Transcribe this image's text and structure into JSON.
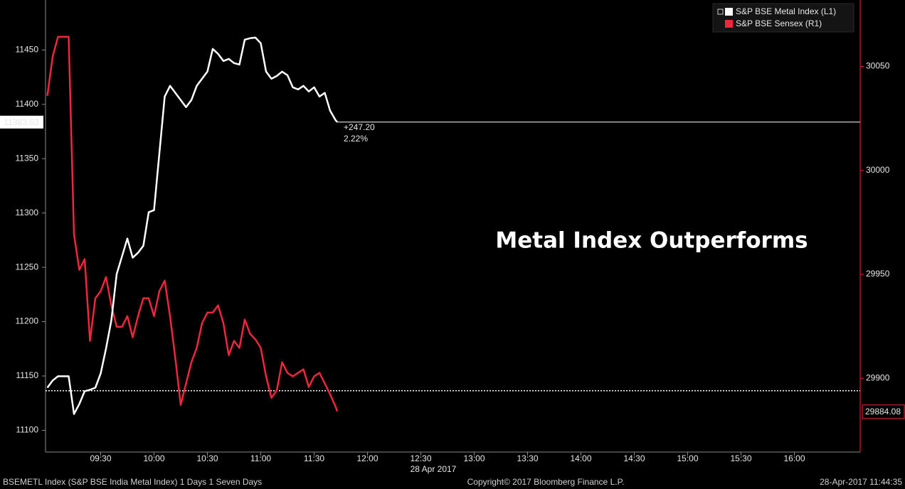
{
  "chart_data": {
    "type": "line",
    "title": "Metal Index Outperforms",
    "x": [
      "09:00",
      "09:03",
      "09:06",
      "09:09",
      "09:12",
      "09:15",
      "09:18",
      "09:21",
      "09:24",
      "09:27",
      "09:30",
      "09:33",
      "09:36",
      "09:39",
      "09:42",
      "09:45",
      "09:48",
      "09:51",
      "09:54",
      "09:57",
      "10:00",
      "10:03",
      "10:06",
      "10:09",
      "10:12",
      "10:15",
      "10:18",
      "10:21",
      "10:24",
      "10:27",
      "10:30",
      "10:33",
      "10:36",
      "10:39",
      "10:42",
      "10:45",
      "10:48",
      "10:51",
      "10:54",
      "10:57",
      "11:00",
      "11:03",
      "11:06",
      "11:09",
      "11:12",
      "11:15",
      "11:18",
      "11:21",
      "11:24",
      "11:27",
      "11:30",
      "11:33",
      "11:36",
      "11:39",
      "11:42",
      "11:43"
    ],
    "series": [
      {
        "name": "S&P BSE Metal Index (L1)",
        "color": "#ffffff",
        "axis": "y",
        "values": [
          11139.2,
          11145.8,
          11149.7,
          11149.7,
          11149.7,
          11115.0,
          11124.2,
          11136.0,
          11137.3,
          11139.2,
          11152.3,
          11175.2,
          11201.3,
          11243.8,
          11260.1,
          11276.5,
          11258.8,
          11263.4,
          11269.9,
          11300.7,
          11302.6,
          11354.9,
          11407.2,
          11417.0,
          11410.5,
          11403.9,
          11397.4,
          11403.9,
          11417.0,
          11423.5,
          11430.1,
          11451.0,
          11446.4,
          11439.9,
          11441.8,
          11437.9,
          11436.6,
          11459.5,
          11460.8,
          11461.4,
          11456.2,
          11430.1,
          11423.5,
          11426.1,
          11430.1,
          11426.8,
          11415.7,
          11413.7,
          11417.0,
          11411.8,
          11415.7,
          11407.2,
          11410.5,
          11394.1,
          11385.6,
          11383.63
        ]
      },
      {
        "name": "S&P BSE Sensex (R1)",
        "color": "#f0263c",
        "axis": "y2",
        "values": [
          30035.9,
          30054.7,
          30064.3,
          30064.3,
          30064.3,
          29969.2,
          29952.2,
          29957.3,
          29918.0,
          29938.5,
          29941.9,
          29948.7,
          29935.1,
          29924.8,
          29924.8,
          29929.9,
          29919.7,
          29929.9,
          29938.5,
          29938.5,
          29929.9,
          29941.9,
          29947.0,
          29929.9,
          29909.4,
          29887.2,
          29897.5,
          29907.7,
          29914.6,
          29926.5,
          29931.6,
          29931.6,
          29935.1,
          29926.5,
          29911.1,
          29918.0,
          29914.6,
          29928.2,
          29921.4,
          29918.7,
          29914.6,
          29900.9,
          29890.6,
          29894.1,
          29907.7,
          29902.6,
          29900.9,
          29902.6,
          29904.3,
          29895.8,
          29900.9,
          29902.6,
          29897.5,
          29892.3,
          29886.5,
          29884.08
        ]
      }
    ],
    "xlim": [
      "08:59",
      "16:37"
    ],
    "xticks": [
      "09:30",
      "10:00",
      "10:30",
      "11:00",
      "11:30",
      "12:00",
      "12:30",
      "13:00",
      "13:30",
      "14:00",
      "14:30",
      "15:00",
      "15:30",
      "16:00"
    ],
    "x_date_label": "28 Apr 2017",
    "ylim": [
      11080,
      11496
    ],
    "yticks": [
      11100,
      11150,
      11200,
      11250,
      11300,
      11350,
      11400,
      11450
    ],
    "y2lim": [
      29864.5,
      30082
    ],
    "y2ticks": [
      29900,
      29950,
      30000,
      30050
    ],
    "previous_close": 11136.43,
    "annotations": [
      "+247.20",
      "2.22%"
    ],
    "legend": "upper right",
    "grid": false
  },
  "footer": {
    "left": "BSEMETL Index (S&P BSE India Metal Index) 1 Days 1 Seven Days",
    "center": "Copyright© 2017 Bloomberg Finance L.P.",
    "right": "28-Apr-2017 11:44:35"
  }
}
